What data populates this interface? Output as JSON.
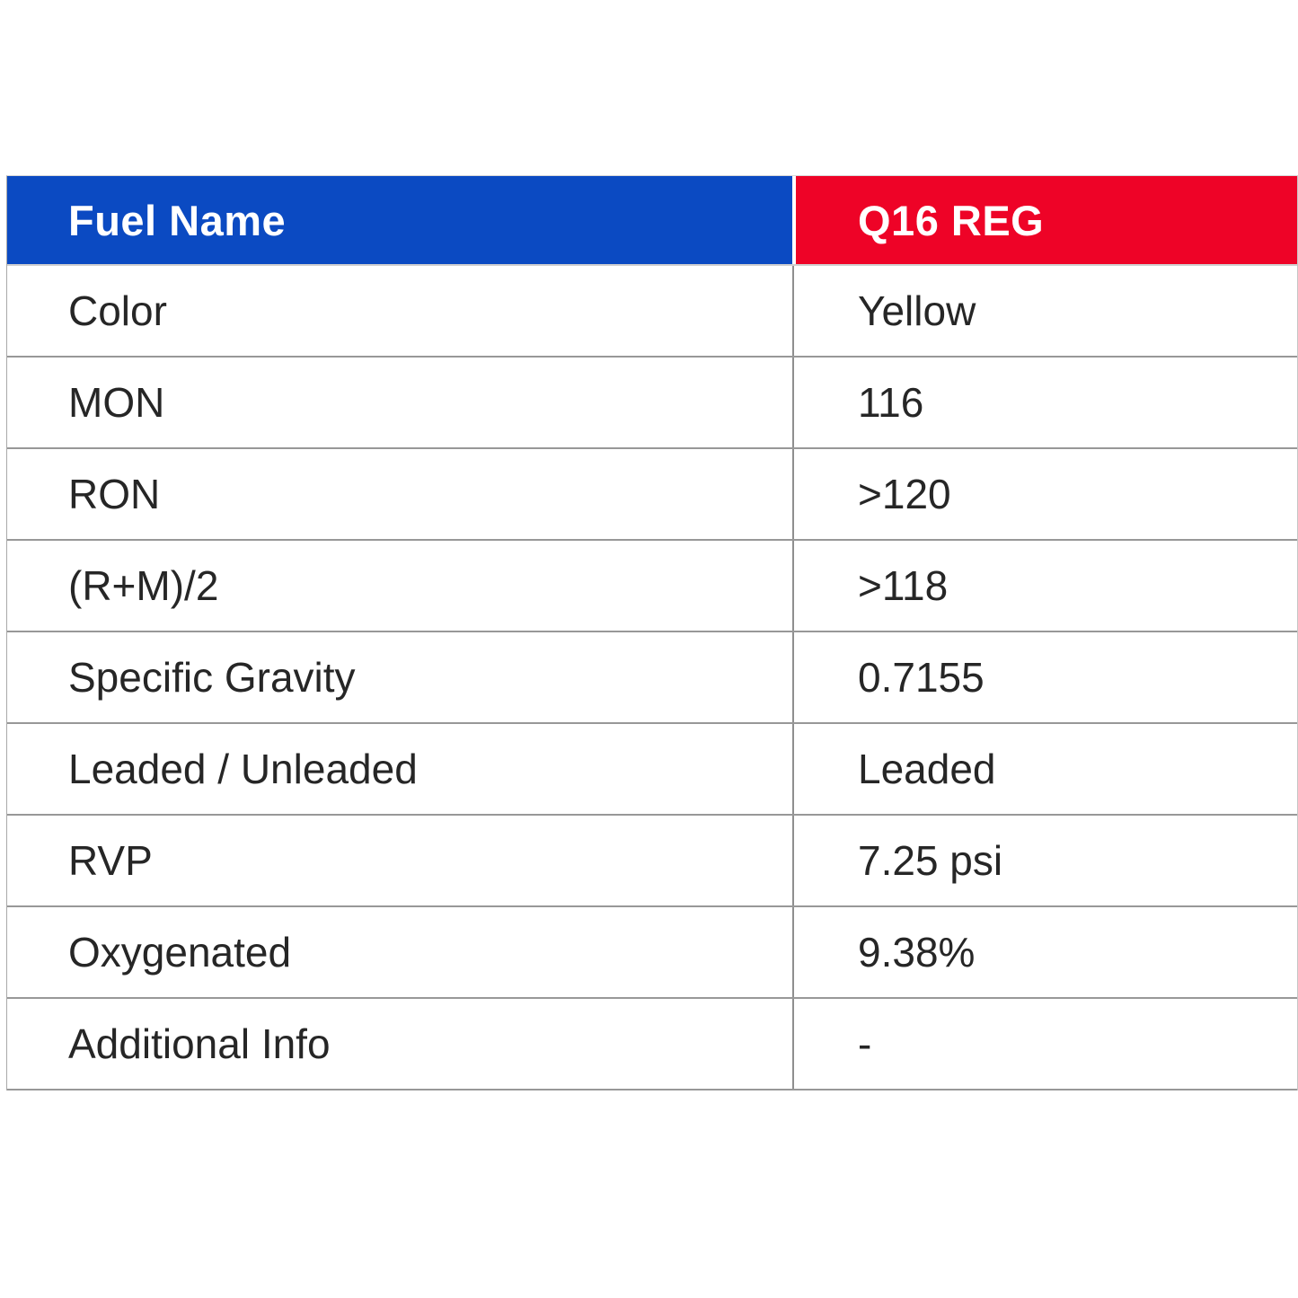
{
  "table": {
    "header": {
      "label": "Fuel Name",
      "value": "Q16 REG"
    },
    "rows": [
      {
        "label": "Color",
        "value": "Yellow"
      },
      {
        "label": "MON",
        "value": "116"
      },
      {
        "label": "RON",
        "value": ">120"
      },
      {
        "label": "(R+M)/2",
        "value": ">118"
      },
      {
        "label": "Specific Gravity",
        "value": "0.7155"
      },
      {
        "label": "Leaded / Unleaded",
        "value": "Leaded"
      },
      {
        "label": "RVP",
        "value": "7.25 psi"
      },
      {
        "label": "Oxygenated",
        "value": "9.38%"
      },
      {
        "label": "Additional Info",
        "value": "-"
      }
    ],
    "colors": {
      "header_label_bg": "#0b4ac2",
      "header_value_bg": "#ee0327",
      "header_text": "#ffffff",
      "body_text": "#262626",
      "grid_line": "#8f8f8f"
    }
  }
}
